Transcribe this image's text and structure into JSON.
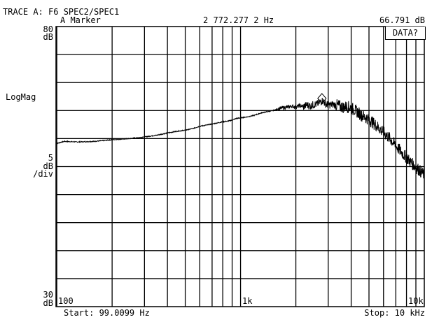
{
  "header": {
    "trace_line": "TRACE A: F6 SPEC2/SPEC1",
    "marker_label": "A Marker",
    "marker_freq": "2 772.277 2 Hz",
    "marker_value": "66.791 dB"
  },
  "data_button_label": "DATA?",
  "yaxis": {
    "top_value": "80",
    "top_unit": "dB",
    "format_label": "LogMag",
    "scale_value": "5",
    "scale_unit": "dB",
    "scale_per": "/div",
    "bottom_value": "30",
    "bottom_unit": "dB"
  },
  "xaxis": {
    "tick_100": "100",
    "tick_1k": "1k",
    "tick_10k": "10k",
    "start_label": "Start: 99.0099 Hz",
    "stop_label": "Stop: 10 kHz"
  },
  "chart_data": {
    "type": "line",
    "x_scale": "log",
    "xlim": [
      99.0099,
      10000
    ],
    "ylim": [
      30,
      80
    ],
    "y_unit": "dB",
    "grid": true,
    "marker": {
      "x": 2772.2772,
      "y": 66.791
    },
    "series": [
      {
        "x": [
          99,
          110,
          130,
          160,
          200,
          250,
          300,
          350,
          400,
          450,
          500,
          550,
          600,
          650,
          700,
          750,
          800,
          850,
          900,
          950,
          1000,
          1100,
          1200,
          1300,
          1400,
          1500,
          1600,
          1700,
          1800,
          1900,
          2000,
          2100,
          2200,
          2300,
          2400,
          2500,
          2600,
          2700,
          2800,
          2900,
          3000,
          3200,
          3400,
          3600,
          3800,
          4000,
          4300,
          4600,
          5000,
          5500,
          6000,
          6500,
          7000,
          7500,
          8000,
          8500,
          9000,
          9500,
          10000
        ],
        "y": [
          59.1,
          59.5,
          59.4,
          59.5,
          59.8,
          60.0,
          60.3,
          60.6,
          61.0,
          61.3,
          61.5,
          61.8,
          62.2,
          62.4,
          62.6,
          62.8,
          63.0,
          63.1,
          63.3,
          63.6,
          63.7,
          63.9,
          64.2,
          64.6,
          64.8,
          65.0,
          65.3,
          65.5,
          65.6,
          65.8,
          65.6,
          65.9,
          65.7,
          66.0,
          65.8,
          66.1,
          66.1,
          66.5,
          66.8,
          66.2,
          66.0,
          66.1,
          65.9,
          65.6,
          65.7,
          65.5,
          64.8,
          64.1,
          63.4,
          62.3,
          61.1,
          60.0,
          58.7,
          57.6,
          56.6,
          55.7,
          54.9,
          54.2,
          53.5
        ]
      }
    ]
  }
}
